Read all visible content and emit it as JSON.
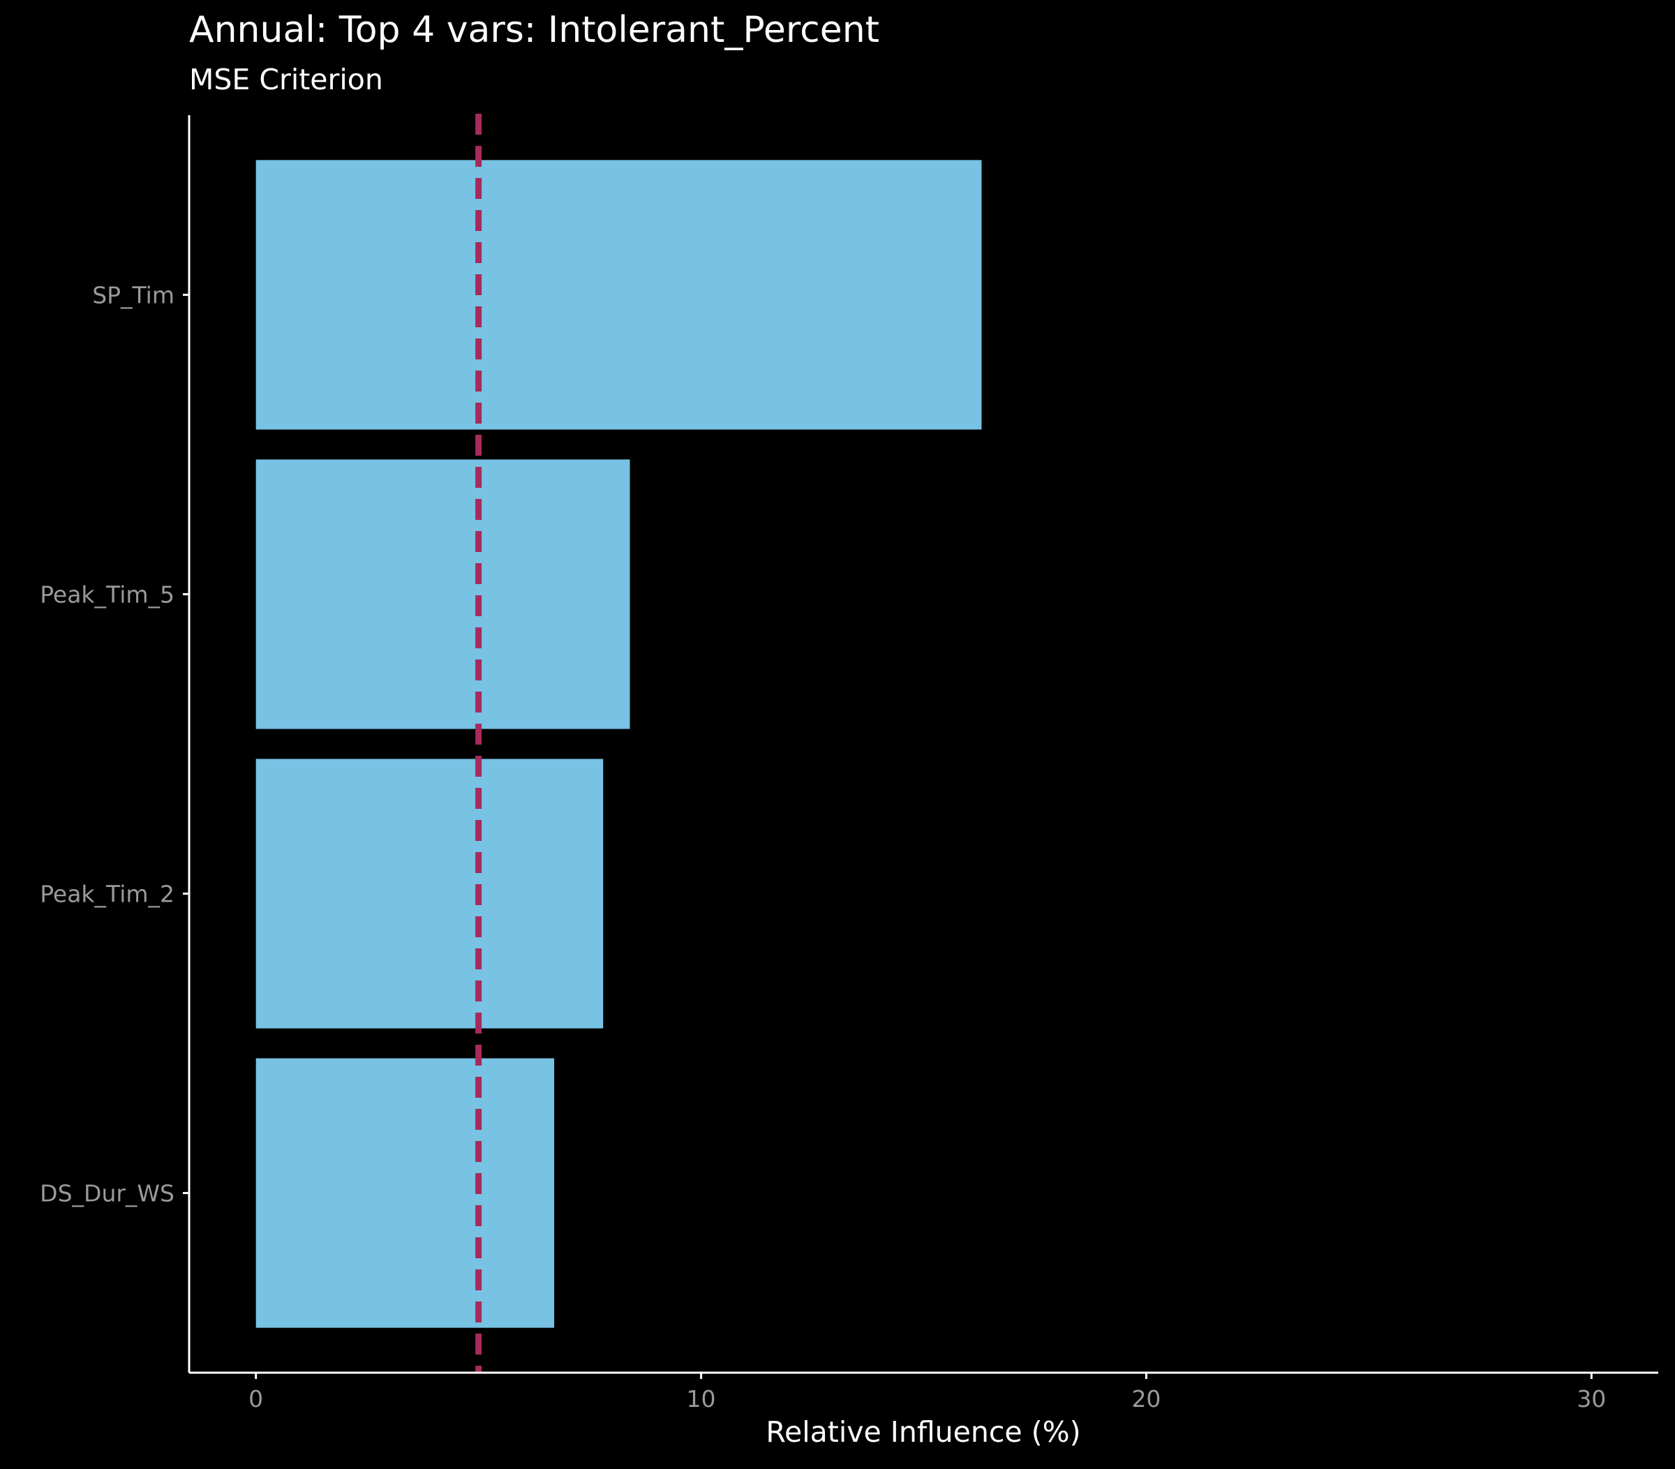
{
  "colors": {
    "background": "#000000",
    "bar_fill": "#78c2e3",
    "reference_line": "#a62b5c",
    "axis_line": "#ffffff",
    "tick_label": "#9a9a9a",
    "title": "#ffffff"
  },
  "chart_data": {
    "type": "bar",
    "orientation": "horizontal",
    "title": "Annual: Top 4 vars: Intolerant_Percent",
    "subtitle": "MSE Criterion",
    "xlabel": "Relative Influence (%)",
    "ylabel": "",
    "categories": [
      "SP_Tim",
      "Peak_Tim_5",
      "Peak_Tim_2",
      "DS_Dur_WS"
    ],
    "values": [
      16.3,
      8.4,
      7.8,
      6.7
    ],
    "xlim": [
      -1.5,
      31.5
    ],
    "x_ticks": [
      0,
      10,
      20,
      30
    ],
    "x_tick_labels": [
      "0",
      "10",
      "20",
      "30"
    ],
    "reference_line": {
      "x": 5,
      "style": "dashed"
    },
    "grid": false,
    "legend": "none"
  }
}
